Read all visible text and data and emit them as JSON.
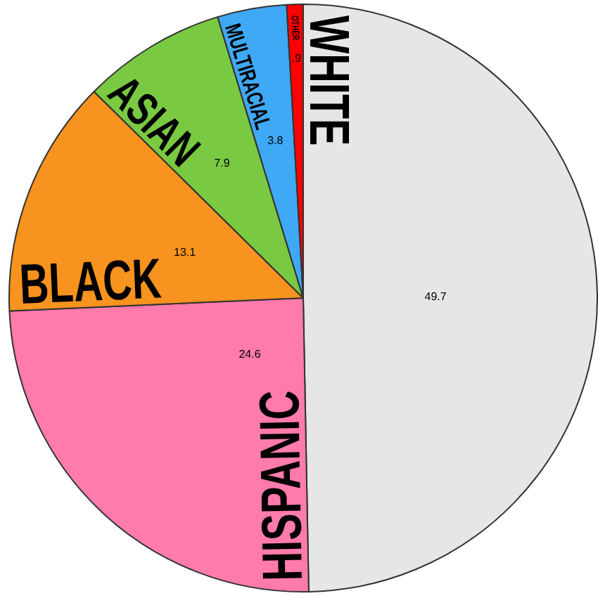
{
  "chart_data": {
    "type": "pie",
    "categories": [
      "WHITE",
      "HISPANIC",
      "BLACK",
      "ASIAN",
      "MULTIRACIAL",
      "OTHER"
    ],
    "values": [
      49.7,
      24.6,
      13.1,
      7.9,
      3.8,
      0.9
    ],
    "colors": [
      "#e6e6e6",
      "#ff7bac",
      "#f7931e",
      "#7ac943",
      "#3fa9f5",
      "#ff0000"
    ],
    "value_labels": [
      "49.7",
      "24.6",
      "13.1",
      "7.9",
      "3.8",
      ".9"
    ]
  }
}
